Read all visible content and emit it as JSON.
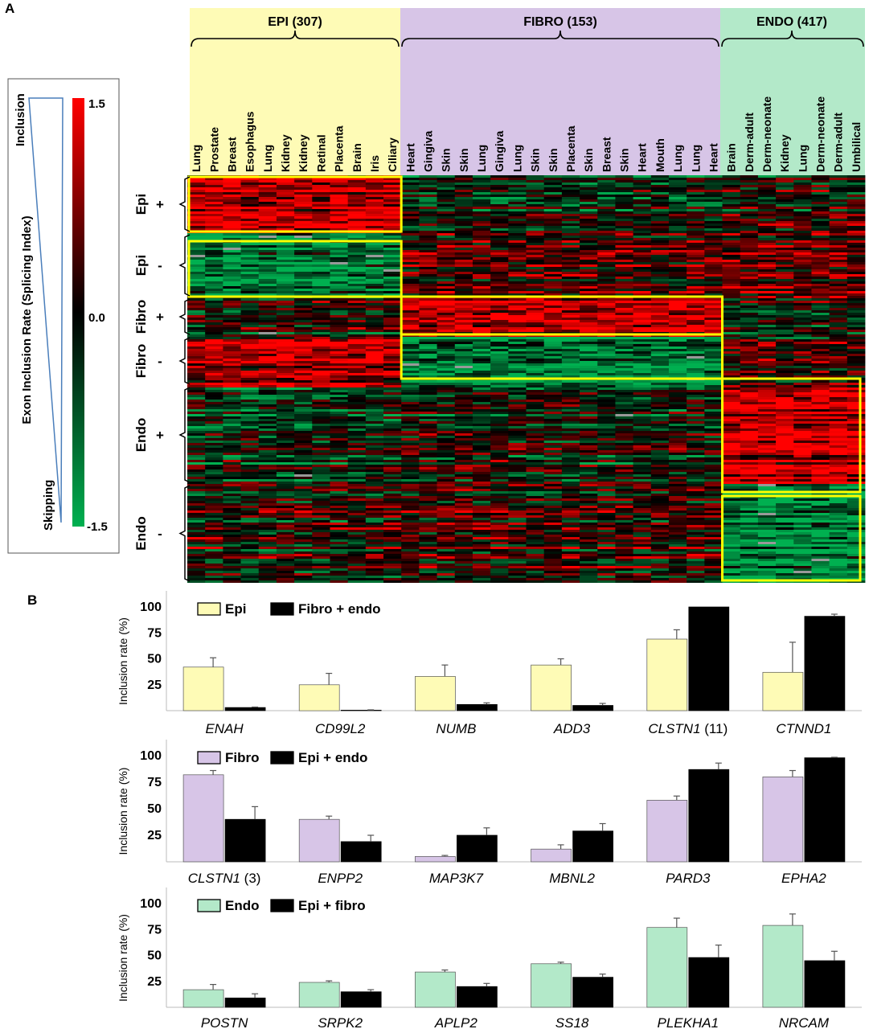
{
  "panel_a": {
    "label": "A",
    "groups": [
      {
        "label": "EPI (307)",
        "color": "#fefbb6"
      },
      {
        "label": "FIBRO (153)",
        "color": "#d7c5e7"
      },
      {
        "label": "ENDO (417)",
        "color": "#b3e9c9"
      }
    ],
    "colorbar": {
      "max_label": "1.5",
      "mid_label": "0.0",
      "min_label": "-1.5",
      "inclusion_label": "Inclusion",
      "skipping_label": "Skipping",
      "axis_label": "Exon Inclusion Rate (Splicing Index)",
      "high_color": "#ff0000",
      "mid_color": "#000000",
      "low_color": "#00b050"
    },
    "highlight_color": "#ffff00",
    "row_groups": [
      {
        "label": "Epi",
        "sign": "+"
      },
      {
        "label": "Epi",
        "sign": "-"
      },
      {
        "label": "Fibro",
        "sign": "+"
      },
      {
        "label": "Fibro",
        "sign": "-"
      },
      {
        "label": "Endo",
        "sign": "+"
      },
      {
        "label": "Endo",
        "sign": "-"
      }
    ],
    "columns": {
      "epi": [
        "Lung",
        "Prostate",
        "Breast",
        "Esophagus",
        "Lung",
        "Kidney",
        "Kidney",
        "Retinal",
        "Placenta",
        "Brain",
        "Iris",
        "Ciliary"
      ],
      "fibro": [
        "Heart",
        "Gingiva",
        "Skin",
        "Skin",
        "Lung",
        "Gingiva",
        "Lung",
        "Skin",
        "Skin",
        "Placenta",
        "Skin",
        "Breast",
        "Skin",
        "Heart",
        "Mouth",
        "Lung",
        "Lung",
        "Heart"
      ],
      "endo": [
        "Brain",
        "Derm-adult",
        "Derm-neonate",
        "Kidney",
        "Lung",
        "Derm-neonate",
        "Derm-adult",
        "Umbilical"
      ]
    }
  },
  "panel_b": {
    "label": "B",
    "ylabel": "Inclusion rate (%)",
    "yticks": [
      25,
      50,
      75,
      100
    ]
  },
  "chart_data": [
    {
      "type": "bar",
      "title": "",
      "ylabel": "Inclusion rate (%)",
      "ylim": [
        0,
        100
      ],
      "categories": [
        "ENAH",
        "CD99L2",
        "NUMB",
        "ADD3",
        "CLSTN1",
        "CTNND1"
      ],
      "category_suffix": [
        "",
        "",
        "",
        "",
        " (11)",
        ""
      ],
      "series": [
        {
          "name": "Epi",
          "color": "#fefbb6",
          "values": [
            42,
            25,
            33,
            44,
            69,
            37
          ],
          "errors": [
            9,
            11,
            11,
            6,
            9,
            29
          ]
        },
        {
          "name": "Fibro + endo",
          "color": "#000000",
          "values": [
            3,
            0.5,
            6,
            5,
            100,
            91
          ],
          "errors": [
            0.5,
            0.3,
            1.5,
            2,
            0,
            2
          ]
        }
      ]
    },
    {
      "type": "bar",
      "title": "",
      "ylabel": "Inclusion rate (%)",
      "ylim": [
        0,
        100
      ],
      "categories": [
        "CLSTN1",
        "ENPP2",
        "MAP3K7",
        "MBNL2",
        "PARD3",
        "EPHA2"
      ],
      "category_suffix": [
        " (3)",
        "",
        "",
        "",
        "",
        ""
      ],
      "series": [
        {
          "name": "Fibro",
          "color": "#d7c5e7",
          "values": [
            82,
            40,
            5,
            12,
            58,
            80
          ],
          "errors": [
            4,
            3,
            1,
            4,
            4,
            6
          ]
        },
        {
          "name": "Epi + endo",
          "color": "#000000",
          "values": [
            40,
            19,
            25,
            29,
            87,
            98
          ],
          "errors": [
            12,
            6,
            7,
            7,
            6,
            0.5
          ]
        }
      ]
    },
    {
      "type": "bar",
      "title": "",
      "ylabel": "Inclusion rate (%)",
      "ylim": [
        0,
        100
      ],
      "categories": [
        "POSTN",
        "SRPK2",
        "APLP2",
        "SS18",
        "PLEKHA1",
        "NRCAM"
      ],
      "category_suffix": [
        "",
        "",
        "",
        "",
        "",
        ""
      ],
      "series": [
        {
          "name": "Endo",
          "color": "#b3e9c9",
          "values": [
            17,
            24,
            34,
            42,
            77,
            79
          ],
          "errors": [
            5,
            1.5,
            2,
            1.5,
            9,
            11
          ]
        },
        {
          "name": "Epi + fibro",
          "color": "#000000",
          "values": [
            9,
            15,
            20,
            29,
            48,
            45
          ],
          "errors": [
            4,
            2,
            3,
            3,
            12,
            9
          ]
        }
      ]
    }
  ]
}
